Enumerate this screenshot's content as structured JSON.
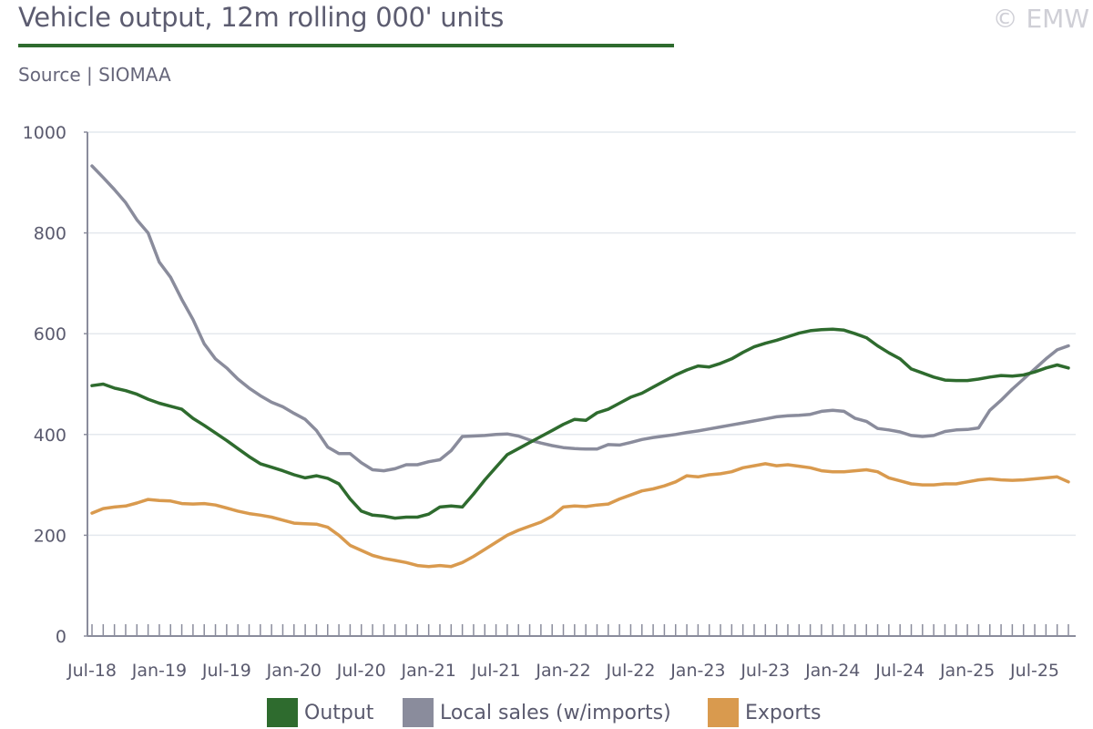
{
  "header": {
    "title": "Vehicle output, 12m rolling 000' units",
    "subtitle": "Source | SIOMAA",
    "copyright": "© EMW"
  },
  "colors": {
    "accent": "#2e6b2e",
    "output": "#2e6b2e",
    "local_sales": "#8a8c9c",
    "exports": "#d99a4e",
    "axis": "#8a8c9c",
    "grid": "#e4e8ee"
  },
  "chart_data": {
    "type": "line",
    "ylim": [
      0,
      1000
    ],
    "y_ticks": [
      "0",
      "200",
      "400",
      "600",
      "800",
      "1000"
    ],
    "x_tick_labels": [
      "Jul-18",
      "Jan-19",
      "Jul-19",
      "Jan-20",
      "Jul-20",
      "Jan-21",
      "Jul-21",
      "Jan-22",
      "Jul-22",
      "Jan-23",
      "Jul-23",
      "Jan-24",
      "Jul-24",
      "Jan-25",
      "Jul-25"
    ],
    "grid": "horizontal",
    "legend_position": "bottom",
    "x_start": "Jul-18",
    "x_end": "Jul-25",
    "series": [
      {
        "name": "Output",
        "color": "#2e6b2e",
        "values": [
          497,
          500,
          492,
          487,
          480,
          470,
          462,
          456,
          450,
          432,
          418,
          403,
          388,
          372,
          356,
          342,
          335,
          328,
          320,
          314,
          318,
          313,
          302,
          272,
          248,
          240,
          238,
          234,
          236,
          236,
          242,
          256,
          258,
          256,
          282,
          310,
          335,
          360,
          372,
          384,
          396,
          408,
          420,
          430,
          428,
          443,
          450,
          462,
          474,
          482,
          494,
          506,
          518,
          528,
          536,
          534,
          541,
          550,
          563,
          574,
          581,
          587,
          594,
          601,
          606,
          608,
          609,
          607,
          600,
          592,
          576,
          562,
          550,
          530,
          522,
          514,
          508,
          507,
          507,
          510,
          514,
          517,
          516,
          518,
          524,
          532,
          538,
          532
        ]
      },
      {
        "name": "Local sales (w/imports)",
        "color": "#8a8c9c",
        "values": [
          933,
          910,
          886,
          860,
          826,
          800,
          742,
          712,
          668,
          628,
          580,
          550,
          532,
          510,
          492,
          477,
          464,
          455,
          442,
          430,
          408,
          375,
          362,
          362,
          344,
          330,
          328,
          332,
          340,
          340,
          346,
          350,
          368,
          396,
          397,
          398,
          400,
          401,
          397,
          389,
          383,
          378,
          374,
          372,
          371,
          371,
          380,
          379,
          384,
          390,
          394,
          397,
          400,
          404,
          407,
          411,
          415,
          419,
          423,
          427,
          431,
          435,
          437,
          438,
          440,
          446,
          448,
          446,
          432,
          426,
          412,
          409,
          405,
          398,
          396,
          398,
          406,
          409,
          410,
          413,
          448,
          468,
          490,
          510,
          530,
          550,
          568,
          576
        ]
      },
      {
        "name": "Exports",
        "color": "#d99a4e",
        "values": [
          244,
          253,
          256,
          258,
          264,
          271,
          269,
          268,
          263,
          262,
          263,
          260,
          254,
          248,
          243,
          240,
          236,
          230,
          224,
          223,
          222,
          216,
          200,
          180,
          170,
          160,
          154,
          150,
          146,
          140,
          138,
          140,
          138,
          146,
          158,
          172,
          186,
          200,
          210,
          218,
          226,
          238,
          256,
          258,
          257,
          260,
          262,
          272,
          280,
          288,
          292,
          298,
          306,
          318,
          316,
          320,
          322,
          326,
          334,
          338,
          342,
          338,
          340,
          337,
          334,
          328,
          326,
          326,
          328,
          330,
          326,
          314,
          308,
          302,
          300,
          300,
          302,
          302,
          306,
          310,
          312,
          310,
          309,
          310,
          312,
          314,
          316,
          306
        ]
      }
    ]
  }
}
